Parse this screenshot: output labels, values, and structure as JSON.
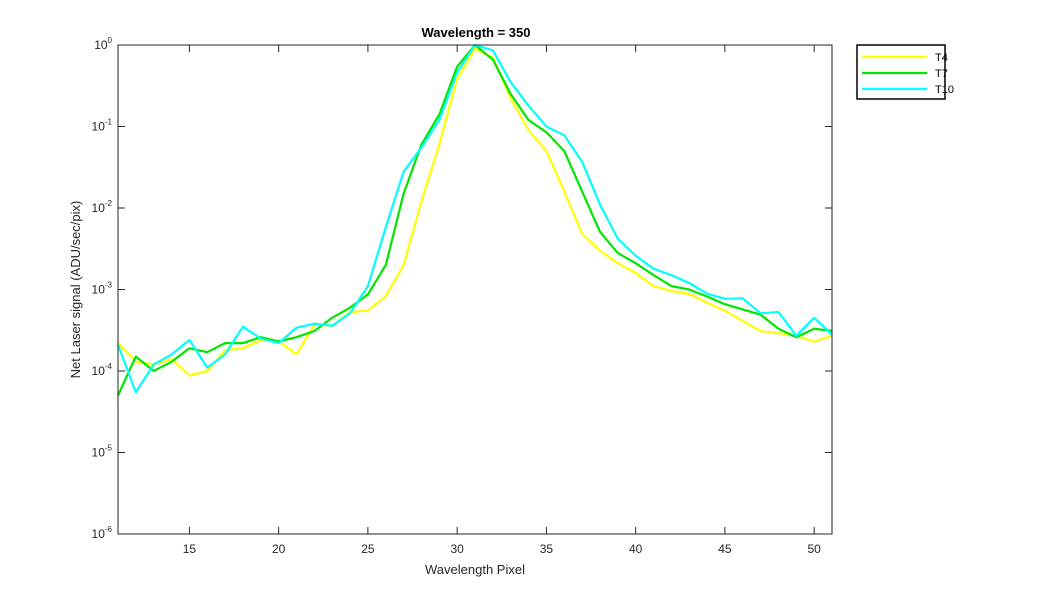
{
  "chart_data": {
    "type": "line",
    "title": "Wavelength = 350",
    "xlabel": "Wavelength Pixel",
    "ylabel": "Net Laser signal  (ADU/sec/pix)",
    "xlim": [
      11,
      51
    ],
    "ylim": [
      1e-06,
      1
    ],
    "yscale": "log",
    "grid": false,
    "legend_position": "outside-top-right",
    "x_ticks": [
      15,
      20,
      25,
      30,
      35,
      40,
      45,
      50
    ],
    "y_ticks": [
      {
        "base": "10",
        "exp": "-6",
        "value": 1e-06
      },
      {
        "base": "10",
        "exp": "-5",
        "value": 1e-05
      },
      {
        "base": "10",
        "exp": "-4",
        "value": 0.0001
      },
      {
        "base": "10",
        "exp": "-3",
        "value": 0.001
      },
      {
        "base": "10",
        "exp": "-2",
        "value": 0.01
      },
      {
        "base": "10",
        "exp": "-1",
        "value": 0.1
      },
      {
        "base": "10",
        "exp": "0",
        "value": 1
      }
    ],
    "x": [
      11,
      12,
      13,
      14,
      15,
      16,
      17,
      18,
      19,
      20,
      21,
      22,
      23,
      24,
      25,
      26,
      27,
      28,
      29,
      30,
      31,
      32,
      33,
      34,
      35,
      36,
      37,
      38,
      39,
      40,
      41,
      42,
      43,
      44,
      45,
      46,
      47,
      48,
      49,
      50,
      51
    ],
    "series": [
      {
        "name": "T4",
        "color": "#ffff00",
        "values": [
          0.00022,
          0.00013,
          0.00012,
          0.00014,
          8.8e-05,
          0.0001,
          0.00018,
          0.00019,
          0.00024,
          0.00023,
          0.00016,
          0.00037,
          0.00036,
          0.00053,
          0.00055,
          0.00083,
          0.002,
          0.012,
          0.06,
          0.38,
          0.9,
          0.7,
          0.22,
          0.09,
          0.05,
          0.016,
          0.0048,
          0.003,
          0.0021,
          0.0016,
          0.0011,
          0.00096,
          0.00088,
          0.00069,
          0.00055,
          0.00041,
          0.00031,
          0.00029,
          0.00027,
          0.00023,
          0.00027
        ]
      },
      {
        "name": "T7",
        "color": "#00e600",
        "values": [
          5e-05,
          0.00015,
          0.0001,
          0.00013,
          0.00019,
          0.00017,
          0.00022,
          0.00022,
          0.00026,
          0.00023,
          0.00026,
          0.00031,
          0.00045,
          0.0006,
          0.00087,
          0.002,
          0.015,
          0.06,
          0.14,
          0.54,
          1.0,
          0.66,
          0.25,
          0.12,
          0.085,
          0.05,
          0.016,
          0.0051,
          0.0028,
          0.0021,
          0.0015,
          0.0011,
          0.001,
          0.00082,
          0.00066,
          0.00057,
          0.00049,
          0.00033,
          0.00026,
          0.00033,
          0.00031
        ]
      },
      {
        "name": "T10",
        "color": "#00ffff",
        "values": [
          0.00021,
          5.5e-05,
          0.00012,
          0.00016,
          0.00024,
          0.00011,
          0.00016,
          0.00035,
          0.00025,
          0.00022,
          0.00034,
          0.00038,
          0.00036,
          0.00051,
          0.0011,
          0.0058,
          0.028,
          0.055,
          0.12,
          0.46,
          1.0,
          0.86,
          0.35,
          0.18,
          0.1,
          0.078,
          0.037,
          0.011,
          0.0042,
          0.0026,
          0.0018,
          0.0015,
          0.0012,
          0.00089,
          0.00077,
          0.00078,
          0.00051,
          0.00053,
          0.00027,
          0.00045,
          0.00028
        ]
      }
    ]
  }
}
